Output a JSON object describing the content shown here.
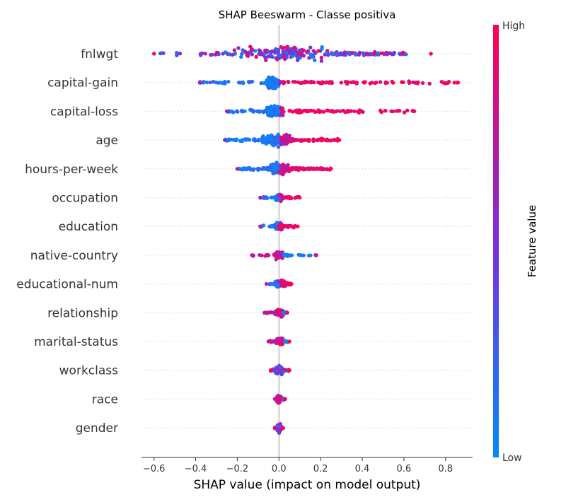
{
  "chart_data": {
    "type": "scatter",
    "subtype": "beeswarm",
    "title": "SHAP Beeswarm - Classe positiva",
    "xlabel": "SHAP value (impact on model output)",
    "xlim": [
      -0.66,
      0.93
    ],
    "xticks": [
      -0.6,
      -0.4,
      -0.2,
      0.0,
      0.2,
      0.4,
      0.6,
      0.8
    ],
    "xtick_labels": [
      "−0.6",
      "−0.4",
      "−0.2",
      "0.0",
      "0.2",
      "0.4",
      "0.6",
      "0.8"
    ],
    "colorbar": {
      "label": "Feature value",
      "high": "High",
      "low": "Low",
      "low_color": "#008bfb",
      "high_color": "#ff0052"
    },
    "features": [
      {
        "name": "fnlwgt",
        "min": -0.6,
        "max": 0.73,
        "core": [
          -0.22,
          0.25
        ],
        "tail": [
          0.25,
          0.62
        ],
        "high_side": "mixed"
      },
      {
        "name": "capital-gain",
        "min": -0.38,
        "max": 0.86,
        "core": [
          -0.06,
          0.0
        ],
        "tail": [
          0.02,
          0.86
        ],
        "high_side": "right"
      },
      {
        "name": "capital-loss",
        "min": -0.25,
        "max": 0.65,
        "core": [
          -0.06,
          0.02
        ],
        "tail": [
          0.05,
          0.65
        ],
        "high_side": "right"
      },
      {
        "name": "age",
        "min": -0.26,
        "max": 0.29,
        "core": [
          -0.08,
          0.06
        ],
        "tail": [
          0.06,
          0.29
        ],
        "high_side": "right"
      },
      {
        "name": "hours-per-week",
        "min": -0.2,
        "max": 0.25,
        "core": [
          -0.05,
          0.05
        ],
        "tail": [
          0.05,
          0.25
        ],
        "high_side": "right"
      },
      {
        "name": "occupation",
        "min": -0.09,
        "max": 0.1,
        "core": [
          -0.02,
          0.02
        ],
        "tail": [
          0.02,
          0.1
        ],
        "high_side": "right"
      },
      {
        "name": "education",
        "min": -0.09,
        "max": 0.09,
        "core": [
          -0.02,
          0.02
        ],
        "tail": [
          0.02,
          0.09
        ],
        "high_side": "right"
      },
      {
        "name": "native-country",
        "min": -0.13,
        "max": 0.18,
        "core": [
          -0.02,
          0.02
        ],
        "tail": [
          0.02,
          0.18
        ],
        "high_side": "left"
      },
      {
        "name": "educational-num",
        "min": -0.06,
        "max": 0.06,
        "core": [
          -0.02,
          0.03
        ],
        "tail": [
          0.02,
          0.06
        ],
        "high_side": "right"
      },
      {
        "name": "relationship",
        "min": -0.07,
        "max": 0.04,
        "core": [
          -0.02,
          0.02
        ],
        "tail": [
          0.01,
          0.04
        ],
        "high_side": "left"
      },
      {
        "name": "marital-status",
        "min": -0.05,
        "max": 0.05,
        "core": [
          -0.02,
          0.02
        ],
        "tail": [
          0.01,
          0.05
        ],
        "high_side": "left"
      },
      {
        "name": "workclass",
        "min": -0.04,
        "max": 0.05,
        "core": [
          -0.02,
          0.02
        ],
        "tail": [
          0.01,
          0.05
        ],
        "high_side": "mixed"
      },
      {
        "name": "race",
        "min": -0.02,
        "max": 0.03,
        "core": [
          -0.01,
          0.01
        ],
        "tail": [
          0.01,
          0.03
        ],
        "high_side": "left"
      },
      {
        "name": "gender",
        "min": -0.02,
        "max": 0.02,
        "core": [
          -0.01,
          0.01
        ],
        "tail": [
          0.0,
          0.02
        ],
        "high_side": "mixed"
      }
    ]
  }
}
